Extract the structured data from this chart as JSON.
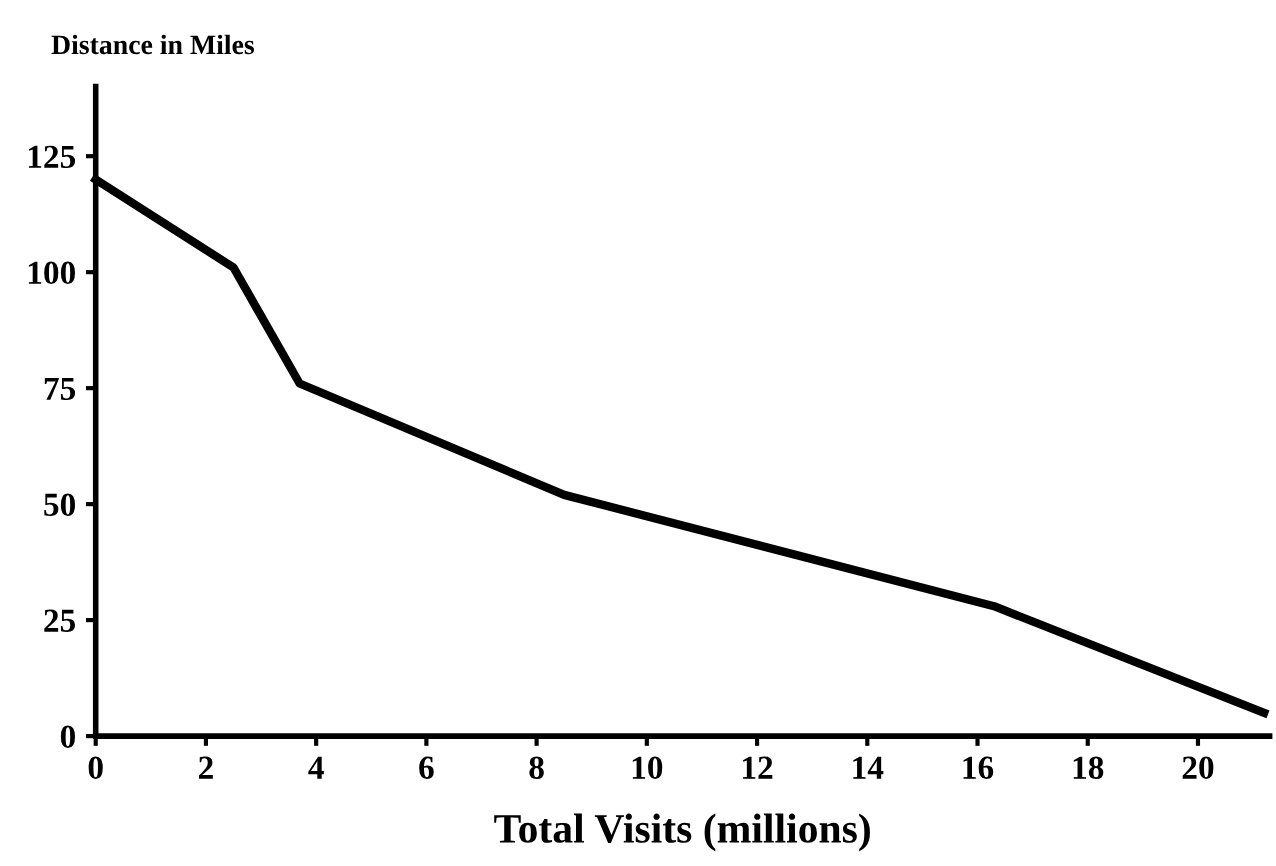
{
  "chart_data": {
    "type": "line",
    "ylabel": "Distance in Miles",
    "xlabel": "Total Visits (millions)",
    "series": [
      {
        "color": "#000000",
        "x": [
          0,
          2.5,
          3.7,
          8.5,
          16.3,
          21.2
        ],
        "values": [
          120,
          101,
          76,
          52,
          28,
          5
        ]
      }
    ],
    "xlim": [
      0,
      21.3
    ],
    "xticks": [
      0,
      2,
      4,
      6,
      8,
      10,
      12,
      14,
      16,
      18,
      20
    ],
    "ylim": [
      0,
      140
    ],
    "yticks": [
      0,
      25,
      50,
      75,
      100,
      125
    ],
    "grid": false,
    "marker": "none",
    "line_style": "solid"
  }
}
